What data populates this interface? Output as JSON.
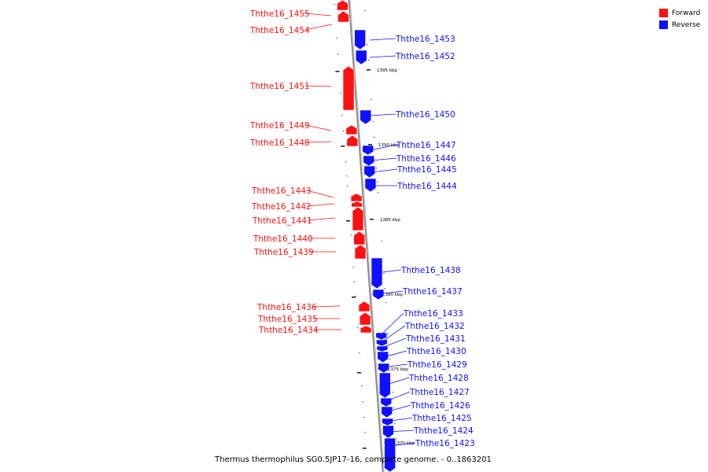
{
  "legend": [
    {
      "label": "Forward",
      "color": "#ff1010"
    },
    {
      "label": "Reverse",
      "color": "#1010ff"
    }
  ],
  "caption": "Thermus thermophilus SG0.5JP17-16, complete genome. - 0..1863201",
  "colors": {
    "forward": "#ff1010",
    "reverse": "#1010ff",
    "backbone": "#888888"
  },
  "coordinate_labels": [
    "1395 kbp",
    "1390 kbp",
    "1385 kbp",
    "1380 kbp",
    "1375 kbp",
    "1370 kbp"
  ],
  "genes": [
    {
      "name": "Ththe16_1455",
      "strand": "forward"
    },
    {
      "name": "Ththe16_1454",
      "strand": "forward"
    },
    {
      "name": "Ththe16_1453",
      "strand": "reverse"
    },
    {
      "name": "Ththe16_1452",
      "strand": "reverse"
    },
    {
      "name": "Ththe16_1451",
      "strand": "forward"
    },
    {
      "name": "Ththe16_1450",
      "strand": "reverse"
    },
    {
      "name": "Ththe16_1449",
      "strand": "forward"
    },
    {
      "name": "Ththe16_1448",
      "strand": "forward"
    },
    {
      "name": "Ththe16_1447",
      "strand": "reverse"
    },
    {
      "name": "Ththe16_1446",
      "strand": "reverse"
    },
    {
      "name": "Ththe16_1445",
      "strand": "reverse"
    },
    {
      "name": "Ththe16_1444",
      "strand": "reverse"
    },
    {
      "name": "Ththe16_1443",
      "strand": "forward"
    },
    {
      "name": "Ththe16_1442",
      "strand": "forward"
    },
    {
      "name": "Ththe16_1441",
      "strand": "forward"
    },
    {
      "name": "Ththe16_1440",
      "strand": "forward"
    },
    {
      "name": "Ththe16_1439",
      "strand": "forward"
    },
    {
      "name": "Ththe16_1438",
      "strand": "reverse"
    },
    {
      "name": "Ththe16_1437",
      "strand": "reverse"
    },
    {
      "name": "Ththe16_1436",
      "strand": "forward"
    },
    {
      "name": "Ththe16_1435",
      "strand": "forward"
    },
    {
      "name": "Ththe16_1434",
      "strand": "forward"
    },
    {
      "name": "Ththe16_1433",
      "strand": "reverse"
    },
    {
      "name": "Ththe16_1432",
      "strand": "reverse"
    },
    {
      "name": "Ththe16_1431",
      "strand": "reverse"
    },
    {
      "name": "Ththe16_1430",
      "strand": "reverse"
    },
    {
      "name": "Ththe16_1429",
      "strand": "reverse"
    },
    {
      "name": "Ththe16_1428",
      "strand": "reverse"
    },
    {
      "name": "Ththe16_1427",
      "strand": "reverse"
    },
    {
      "name": "Ththe16_1426",
      "strand": "reverse"
    },
    {
      "name": "Ththe16_1425",
      "strand": "reverse"
    },
    {
      "name": "Ththe16_1424",
      "strand": "reverse"
    },
    {
      "name": "Ththe16_1423",
      "strand": "reverse"
    }
  ]
}
